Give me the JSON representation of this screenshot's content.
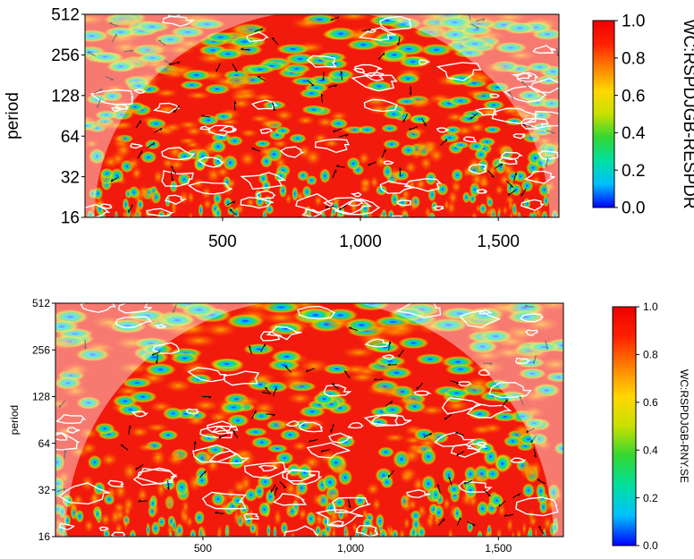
{
  "chart_data": [
    {
      "type": "heatmap",
      "subtype": "wavelet-coherence",
      "ylabel": "period",
      "xlabel": "",
      "y_scale": "log2",
      "ylim": [
        16,
        512
      ],
      "y_ticks": [
        16,
        32,
        64,
        128,
        256,
        512
      ],
      "y_tick_labels": [
        "16",
        "32",
        "64",
        "128",
        "256",
        "512"
      ],
      "xlim": [
        1,
        1720
      ],
      "x_ticks": [
        500,
        1000,
        1500
      ],
      "x_tick_labels": [
        "500",
        "1,000",
        "1,500"
      ],
      "colorbar": {
        "label": "WC:RSPDJGB-RESPDR",
        "range": [
          0,
          1
        ],
        "ticks": [
          1.0,
          0.8,
          0.6,
          0.4,
          0.2,
          0.0
        ],
        "tick_labels": [
          "1.0",
          "0.8",
          "0.6",
          "0.4",
          "0.2",
          "0.0"
        ],
        "colors": [
          "#0000ff",
          "#00bfff",
          "#00e0a0",
          "#33d633",
          "#c8e000",
          "#ffd700",
          "#ff8000",
          "#ff2000",
          "#ee0000"
        ]
      },
      "cone_of_influence": true,
      "significance_contours": "white",
      "phase_arrows": true
    },
    {
      "type": "heatmap",
      "subtype": "wavelet-coherence",
      "ylabel": "period",
      "xlabel": "",
      "y_scale": "log2",
      "ylim": [
        16,
        512
      ],
      "y_ticks": [
        16,
        32,
        64,
        128,
        256,
        512
      ],
      "y_tick_labels": [
        "16",
        "32",
        "64",
        "128",
        "256",
        "512"
      ],
      "xlim": [
        1,
        1720
      ],
      "x_ticks": [
        500,
        1000,
        1500
      ],
      "x_tick_labels": [
        "500",
        "1,000",
        "1,500"
      ],
      "colorbar": {
        "label": "WC:RSPDJGB-RNY.SE",
        "range": [
          0,
          1
        ],
        "ticks": [
          1.0,
          0.8,
          0.6,
          0.4,
          0.2,
          0.0
        ],
        "tick_labels": [
          "1.0",
          "0.8",
          "0.6",
          "0.4",
          "0.2",
          "0.0"
        ],
        "colors": [
          "#0000ff",
          "#00bfff",
          "#00e0a0",
          "#33d633",
          "#c8e000",
          "#ffd700",
          "#ff8000",
          "#ff2000",
          "#ee0000"
        ]
      },
      "cone_of_influence": true,
      "significance_contours": "white",
      "phase_arrows": true
    }
  ]
}
